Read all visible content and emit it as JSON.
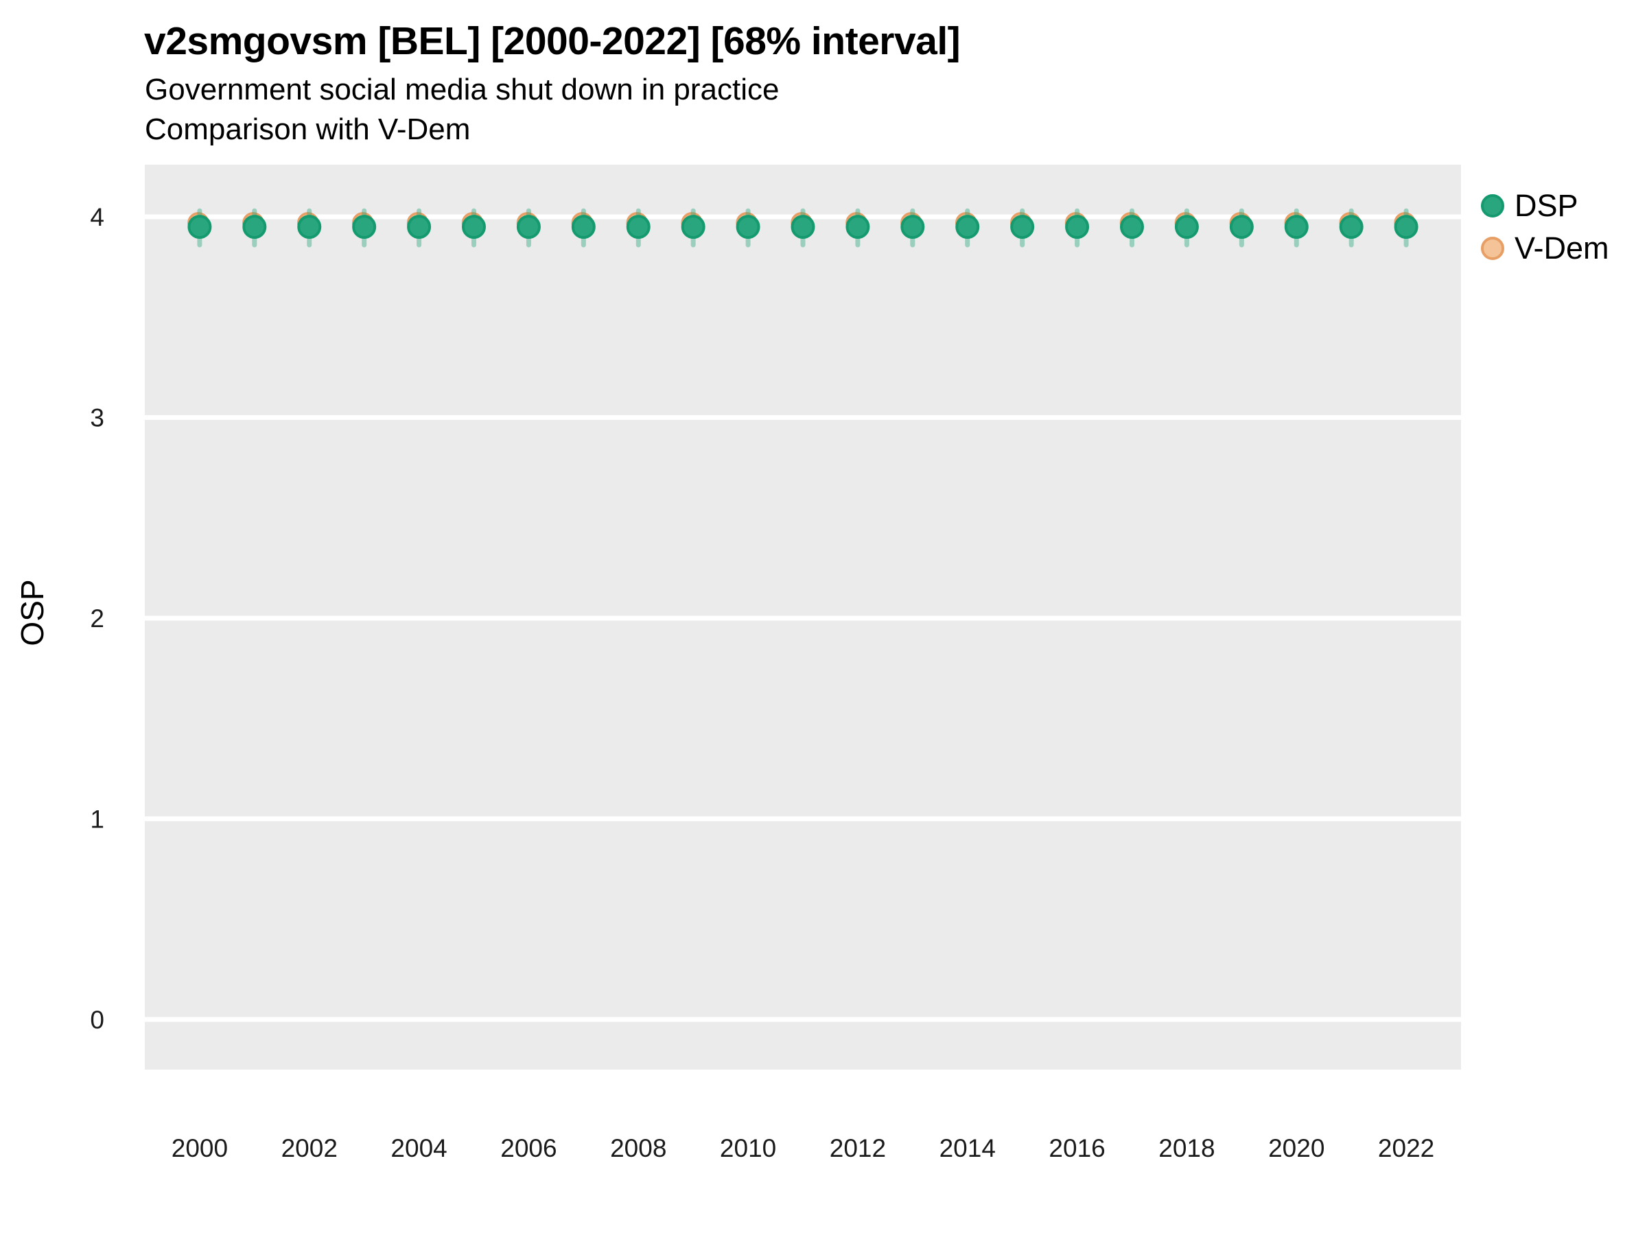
{
  "chart_data": {
    "type": "scatter",
    "title": "v2smgovsm [BEL] [2000-2022] [68% interval]",
    "subtitle": "Government social media shut down in practice",
    "subtitle2": "Comparison with V-Dem",
    "xlabel": "",
    "ylabel": "OSP",
    "interval_label": "68% interval",
    "x": [
      2000,
      2001,
      2002,
      2003,
      2004,
      2005,
      2006,
      2007,
      2008,
      2009,
      2010,
      2011,
      2012,
      2013,
      2014,
      2015,
      2016,
      2017,
      2018,
      2019,
      2020,
      2021,
      2022
    ],
    "series": [
      {
        "name": "DSP",
        "marker": "circle",
        "fill": "#2aa67f",
        "stroke": "#149a6e",
        "values": [
          3.95,
          3.95,
          3.95,
          3.95,
          3.95,
          3.95,
          3.95,
          3.95,
          3.95,
          3.95,
          3.95,
          3.95,
          3.95,
          3.95,
          3.95,
          3.95,
          3.95,
          3.95,
          3.95,
          3.95,
          3.95,
          3.95,
          3.95
        ],
        "interval_low": [
          3.86,
          3.86,
          3.86,
          3.86,
          3.86,
          3.86,
          3.86,
          3.86,
          3.86,
          3.86,
          3.86,
          3.86,
          3.86,
          3.86,
          3.86,
          3.86,
          3.86,
          3.86,
          3.86,
          3.86,
          3.86,
          3.86,
          3.86
        ],
        "interval_high": [
          4.03,
          4.03,
          4.03,
          4.03,
          4.03,
          4.03,
          4.03,
          4.03,
          4.03,
          4.03,
          4.03,
          4.03,
          4.03,
          4.03,
          4.03,
          4.03,
          4.03,
          4.03,
          4.03,
          4.03,
          4.03,
          4.03,
          4.03
        ],
        "interval_opacity": 0.42
      },
      {
        "name": "V-Dem",
        "marker": "circle",
        "fill": "#f4c398",
        "stroke": "#e89f66",
        "values": [
          3.97,
          3.97,
          3.97,
          3.97,
          3.97,
          3.97,
          3.97,
          3.97,
          3.97,
          3.97,
          3.97,
          3.97,
          3.97,
          3.97,
          3.97,
          3.97,
          3.97,
          3.97,
          3.97,
          3.97,
          3.97,
          3.97,
          3.97
        ]
      }
    ],
    "xticks": [
      2000,
      2002,
      2004,
      2006,
      2008,
      2010,
      2012,
      2014,
      2016,
      2018,
      2020,
      2022
    ],
    "yticks": [
      0,
      1,
      2,
      3,
      4
    ],
    "xlim": [
      1999,
      2023
    ],
    "ylim": [
      -0.25,
      4.26
    ],
    "grid": "horizontal-major",
    "grid_color": "#ffffff",
    "panel_bg": "#ebebeb",
    "tick_label_color": "#1a1a1a",
    "legend_position": "top-right-outside"
  }
}
